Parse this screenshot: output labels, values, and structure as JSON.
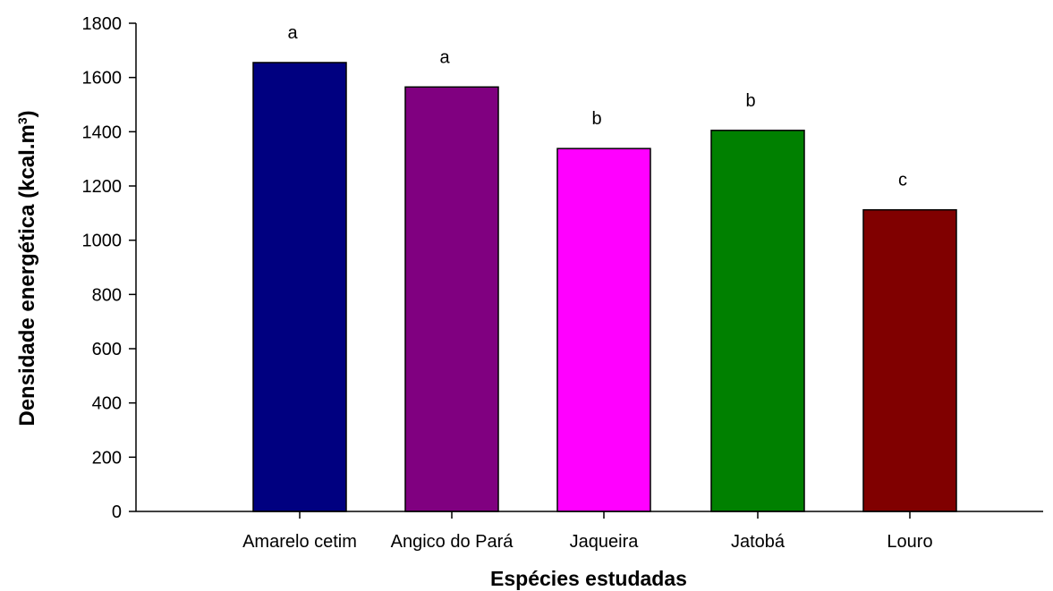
{
  "chart_data": {
    "type": "bar",
    "categories": [
      "Amarelo cetim",
      "Angico do Pará",
      "Jaqueira",
      "Jatobá",
      "Louro"
    ],
    "values": [
      1655,
      1565,
      1338,
      1405,
      1112
    ],
    "group_labels": [
      "a",
      "a",
      "b",
      "b",
      "c"
    ],
    "colors": [
      "#000080",
      "#800080",
      "#ff00ff",
      "#008000",
      "#800000"
    ],
    "xlabel": "Espécies estudadas",
    "ylabel": {
      "main": "Densidade energética (kcal.m",
      "superscript": "3",
      "suffix": ")"
    },
    "ylim": [
      0,
      1800
    ],
    "yticks": [
      "0",
      "200",
      "400",
      "600",
      "800",
      "1000",
      "1200",
      "1400",
      "1600",
      "1800"
    ],
    "grid": false,
    "legend": "none"
  }
}
